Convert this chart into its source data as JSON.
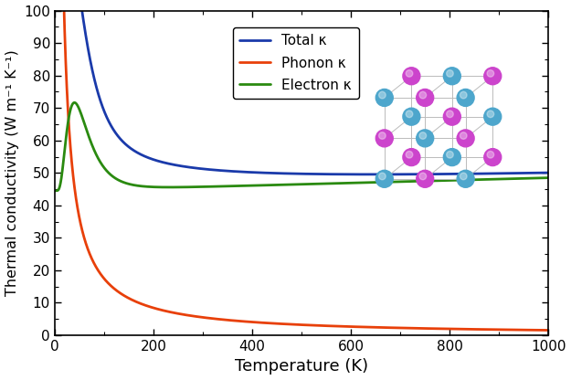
{
  "xlabel": "Temperature (K)",
  "ylabel": "Thermal conductivity (W m⁻¹ K⁻¹)",
  "xlim": [
    0,
    1000
  ],
  "ylim": [
    0,
    100
  ],
  "xticks": [
    0,
    200,
    400,
    600,
    800,
    1000
  ],
  "yticks": [
    0,
    10,
    20,
    30,
    40,
    50,
    60,
    70,
    80,
    90,
    100
  ],
  "legend_entries": [
    "Total κ",
    "Phonon κ",
    "Electron κ"
  ],
  "line_colors": [
    "#1a3aaa",
    "#e8400a",
    "#2a8a10"
  ],
  "line_width": 2.0,
  "phonon_A": 2200,
  "phonon_n": 1.05,
  "electron_baseline_a": 44.5,
  "electron_baseline_b": 4.0,
  "electron_peak_A": 6.5,
  "electron_peak_T0": 40,
  "electron_peak_sigma": 18,
  "teal_color": "#4da6cc",
  "pink_color": "#cc44cc",
  "lattice_color": "#bbbbbb"
}
